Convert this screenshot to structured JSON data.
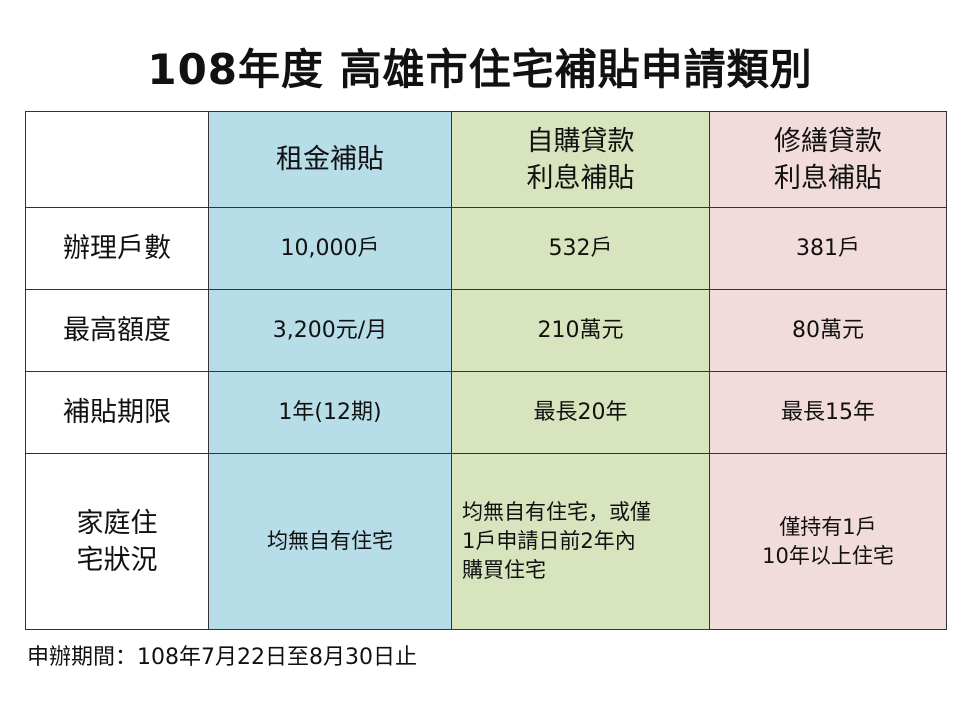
{
  "title": "108年度 高雄市住宅補貼申請類別",
  "columns": [
    {
      "lines": [
        "租金補貼"
      ],
      "color": "#b7dde8"
    },
    {
      "lines": [
        "自購貸款",
        "利息補貼"
      ],
      "color": "#d7e4bd"
    },
    {
      "lines": [
        "修繕貸款",
        "利息補貼"
      ],
      "color": "#f2dcdb"
    }
  ],
  "rows": [
    {
      "label": [
        "辦理戶數"
      ],
      "values": [
        "10,000戶",
        "532戶",
        "381戶"
      ]
    },
    {
      "label": [
        "最高額度"
      ],
      "values": [
        "3,200元/月",
        "210萬元",
        "80萬元"
      ]
    },
    {
      "label": [
        "補貼期限"
      ],
      "values": [
        "1年(12期)",
        "最長20年",
        "最長15年"
      ]
    },
    {
      "label": [
        "家庭住",
        "宅狀況"
      ],
      "values": [
        [
          "均無自有住宅"
        ],
        [
          "均無自有住宅，或僅",
          "1戶申請日前2年內",
          "購買住宅"
        ],
        [
          "僅持有1戶",
          "10年以上住宅"
        ]
      ]
    }
  ],
  "footer": "申辦期間：108年7月22日至8月30日止"
}
